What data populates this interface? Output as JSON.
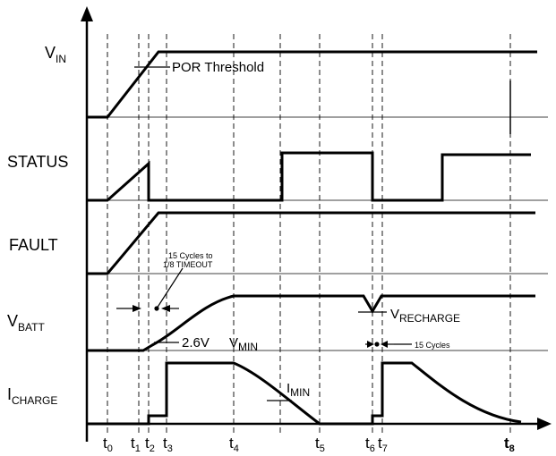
{
  "signals": {
    "vin": {
      "main": "V",
      "sub": "IN"
    },
    "status": {
      "main": "STATUS"
    },
    "fault": {
      "main": "FAULT"
    },
    "vbatt": {
      "main": "V",
      "sub": "BATT"
    },
    "icharge": {
      "main": "I",
      "sub": "CHARGE"
    }
  },
  "annotations": {
    "por_threshold": "POR Threshold",
    "cycles_timeout_line1": "15 Cycles to",
    "cycles_timeout_line2": "1/8 TIMEOUT",
    "voltage_2v6": "2.6V",
    "vmin": {
      "main": "V",
      "sub": "MIN"
    },
    "vrecharge": {
      "main": "V",
      "sub": "RECHARGE"
    },
    "cycles_15": "15 Cycles",
    "imin": {
      "main": "I",
      "sub": "MIN"
    }
  },
  "time_markers": [
    {
      "main": "t",
      "sub": "0"
    },
    {
      "main": "t",
      "sub": "1"
    },
    {
      "main": "t",
      "sub": "2"
    },
    {
      "main": "t",
      "sub": "3"
    },
    {
      "main": "t",
      "sub": "4"
    },
    {
      "main": "t",
      "sub": "5"
    },
    {
      "main": "t",
      "sub": "6"
    },
    {
      "main": "t",
      "sub": "7"
    },
    {
      "main": "t",
      "sub": "8"
    }
  ]
}
